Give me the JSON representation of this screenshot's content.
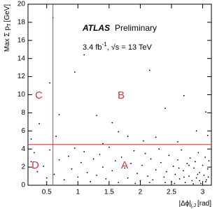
{
  "chart_data": {
    "type": "scatter",
    "experiment": "ATLAS",
    "status": "Preliminary",
    "lumi": {
      "main": "3.4 fb",
      "sup": "-1",
      "rest": ", √s = 13 TeV"
    },
    "x_label": {
      "main": "|Δϕ|",
      "sub": "j,J",
      "unit": "[rad]"
    },
    "y_label": {
      "main": "Max Σ p",
      "sub": "T",
      "unit": "[GeV]"
    },
    "regions": [
      "A",
      "B",
      "C",
      "D"
    ],
    "cut_x": 0.6,
    "cut_y": 4.5,
    "cut_color": "#e03030",
    "color": "#000000",
    "xlim": [
      0.2,
      3.14
    ],
    "ylim": [
      0,
      20
    ],
    "xticks": [
      0.5,
      1,
      1.5,
      2,
      2.5,
      3
    ],
    "yticks": [
      0,
      2,
      4,
      6,
      8,
      10,
      12,
      14,
      16,
      18,
      20
    ],
    "x": [
      0.6,
      1.1,
      0.95,
      2.15,
      0.55,
      2.7,
      3.05,
      0.7,
      1.3,
      2.4,
      0.38,
      1.55,
      2.9,
      1.8,
      3.08,
      0.65,
      2.05,
      1.4,
      2.6,
      0.25,
      1.65,
      2.25,
      0.3,
      0.45,
      0.55,
      0.62,
      0.7,
      0.78,
      0.85,
      0.9,
      0.95,
      1.0,
      1.05,
      1.1,
      1.15,
      1.2,
      1.25,
      1.3,
      1.35,
      1.4,
      1.45,
      1.5,
      1.55,
      1.6,
      1.65,
      1.7,
      1.75,
      1.8,
      1.85,
      1.9,
      1.95,
      2.0,
      2.03,
      2.08,
      2.12,
      2.17,
      2.2,
      2.25,
      2.3,
      2.33,
      2.38,
      2.42,
      2.46,
      2.5,
      2.53,
      2.56,
      2.6,
      2.63,
      2.66,
      2.69,
      2.72,
      2.75,
      2.78,
      2.8,
      2.83,
      2.86,
      2.88,
      2.9,
      2.93,
      2.95,
      2.97,
      3.0,
      3.02,
      3.04,
      3.06,
      3.08,
      3.1,
      2.85,
      2.7,
      2.55,
      2.4,
      2.95,
      3.05,
      2.62,
      2.78,
      2.92,
      3.09,
      1.92,
      2.15,
      0.5,
      0.35,
      0.25
    ],
    "y": [
      18.5,
      14.4,
      12.5,
      12.7,
      11.3,
      9.9,
      8.1,
      7.8,
      7.7,
      8.5,
      6.8,
      6.9,
      6.0,
      5.4,
      5.5,
      5.4,
      4.9,
      4.6,
      4.8,
      5.1,
      5.9,
      5.3,
      3.6,
      2.1,
      3.9,
      1.2,
      2.8,
      0.6,
      3.2,
      1.8,
      4.1,
      0.9,
      2.5,
      3.7,
      1.4,
      0.4,
      2.9,
      1.1,
      3.4,
      2.0,
      0.7,
      4.2,
      1.6,
      2.7,
      0.3,
      3.1,
      1.9,
      0.8,
      2.4,
      3.8,
      1.3,
      0.5,
      2.2,
      3.5,
      1.0,
      2.9,
      0.6,
      1.7,
      4.0,
      2.5,
      0.9,
      1.5,
      3.3,
      0.4,
      2.1,
      1.2,
      2.8,
      0.7,
      3.9,
      1.6,
      0.3,
      2.4,
      1.0,
      3.0,
      0.5,
      1.9,
      2.6,
      0.8,
      3.6,
      1.4,
      0.2,
      2.2,
      1.1,
      3.1,
      0.6,
      1.8,
      2.7,
      0.15,
      0.9,
      0.2,
      0.3,
      0.5,
      0.4,
      1.9,
      2.2,
      1.2,
      0.9,
      0.2,
      0.3,
      0.8,
      1.5,
      2.6
    ]
  }
}
